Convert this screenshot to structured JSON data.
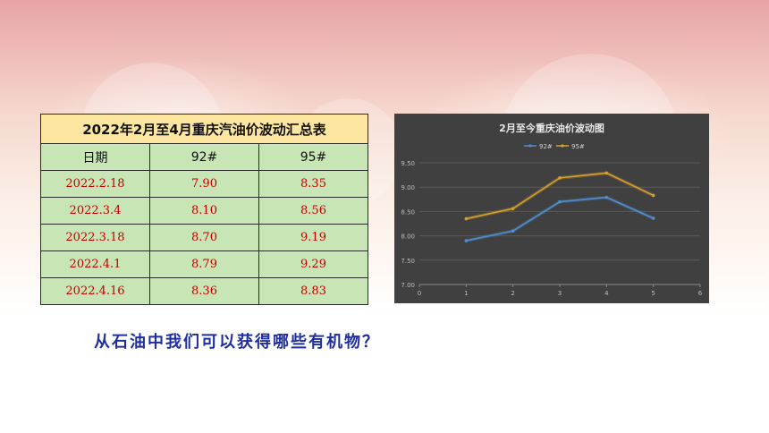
{
  "table": {
    "title": "2022年2月至4月重庆汽油价波动汇总表",
    "headers": [
      "日期",
      "92#",
      "95#"
    ],
    "rows": [
      [
        "2022.2.18",
        "7.90",
        "8.35"
      ],
      [
        "2022.3.4",
        "8.10",
        "8.56"
      ],
      [
        "2022.3.18",
        "8.70",
        "9.19"
      ],
      [
        "2022.4.1",
        "8.79",
        "9.29"
      ],
      [
        "2022.4.16",
        "8.36",
        "8.83"
      ]
    ]
  },
  "chart_data": {
    "type": "line",
    "title": "2月至今重庆油价波动图",
    "x": [
      1,
      2,
      3,
      4,
      5
    ],
    "series": [
      {
        "name": "92#",
        "values": [
          7.9,
          8.1,
          8.7,
          8.79,
          8.36
        ],
        "color": "#4d8fd1"
      },
      {
        "name": "95#",
        "values": [
          8.35,
          8.56,
          9.19,
          9.29,
          8.83
        ],
        "color": "#d6a12b"
      }
    ],
    "xlim": [
      0,
      6
    ],
    "ylim": [
      7.0,
      9.5
    ],
    "xticks": [
      "0",
      "1",
      "2",
      "3",
      "4",
      "5",
      "6"
    ],
    "yticks": [
      "7.00",
      "7.50",
      "8.00",
      "8.50",
      "9.00",
      "9.50"
    ],
    "grid": true,
    "legend": "top-center",
    "background": "#404040"
  },
  "question": "从石油中我们可以获得哪些有机物？"
}
